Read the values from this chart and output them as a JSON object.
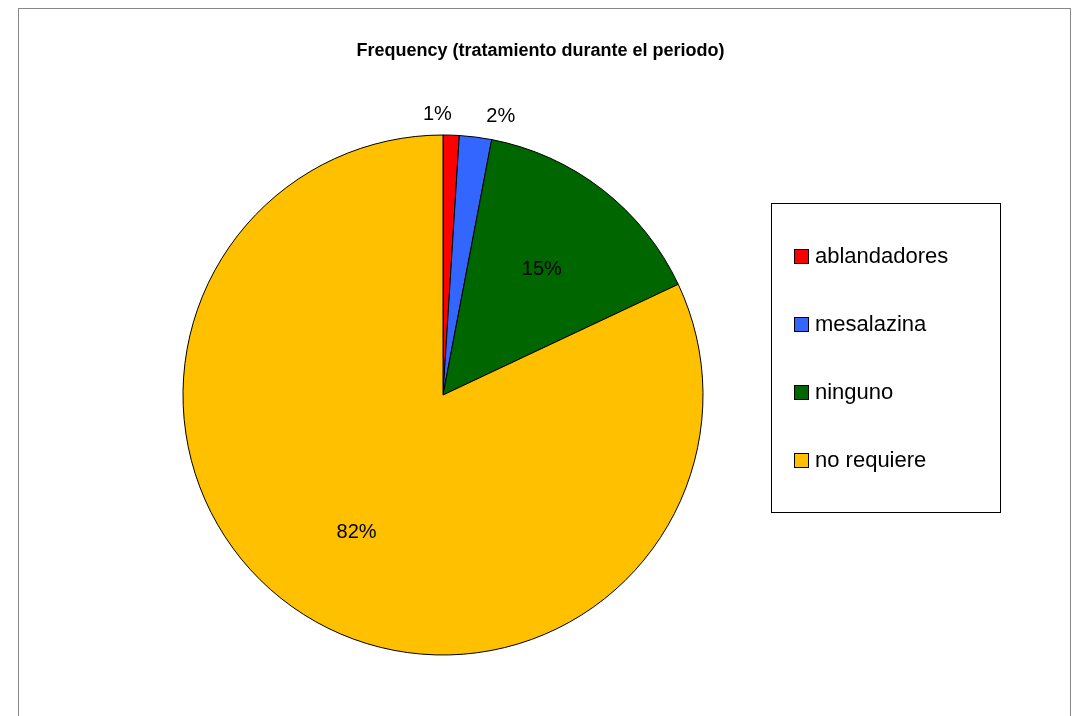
{
  "chart_data": {
    "type": "pie",
    "title": "Frequency (tratamiento durante el periodo)",
    "categories": [
      "ablandadores",
      "mesalazina",
      "ninguno",
      "no requiere"
    ],
    "values": [
      1,
      2,
      15,
      82
    ],
    "colors": [
      "#ff0000",
      "#3366ff",
      "#006600",
      "#ffc000"
    ],
    "value_labels": [
      "1%",
      "2%",
      "15%",
      "82%"
    ],
    "legend": "right"
  }
}
